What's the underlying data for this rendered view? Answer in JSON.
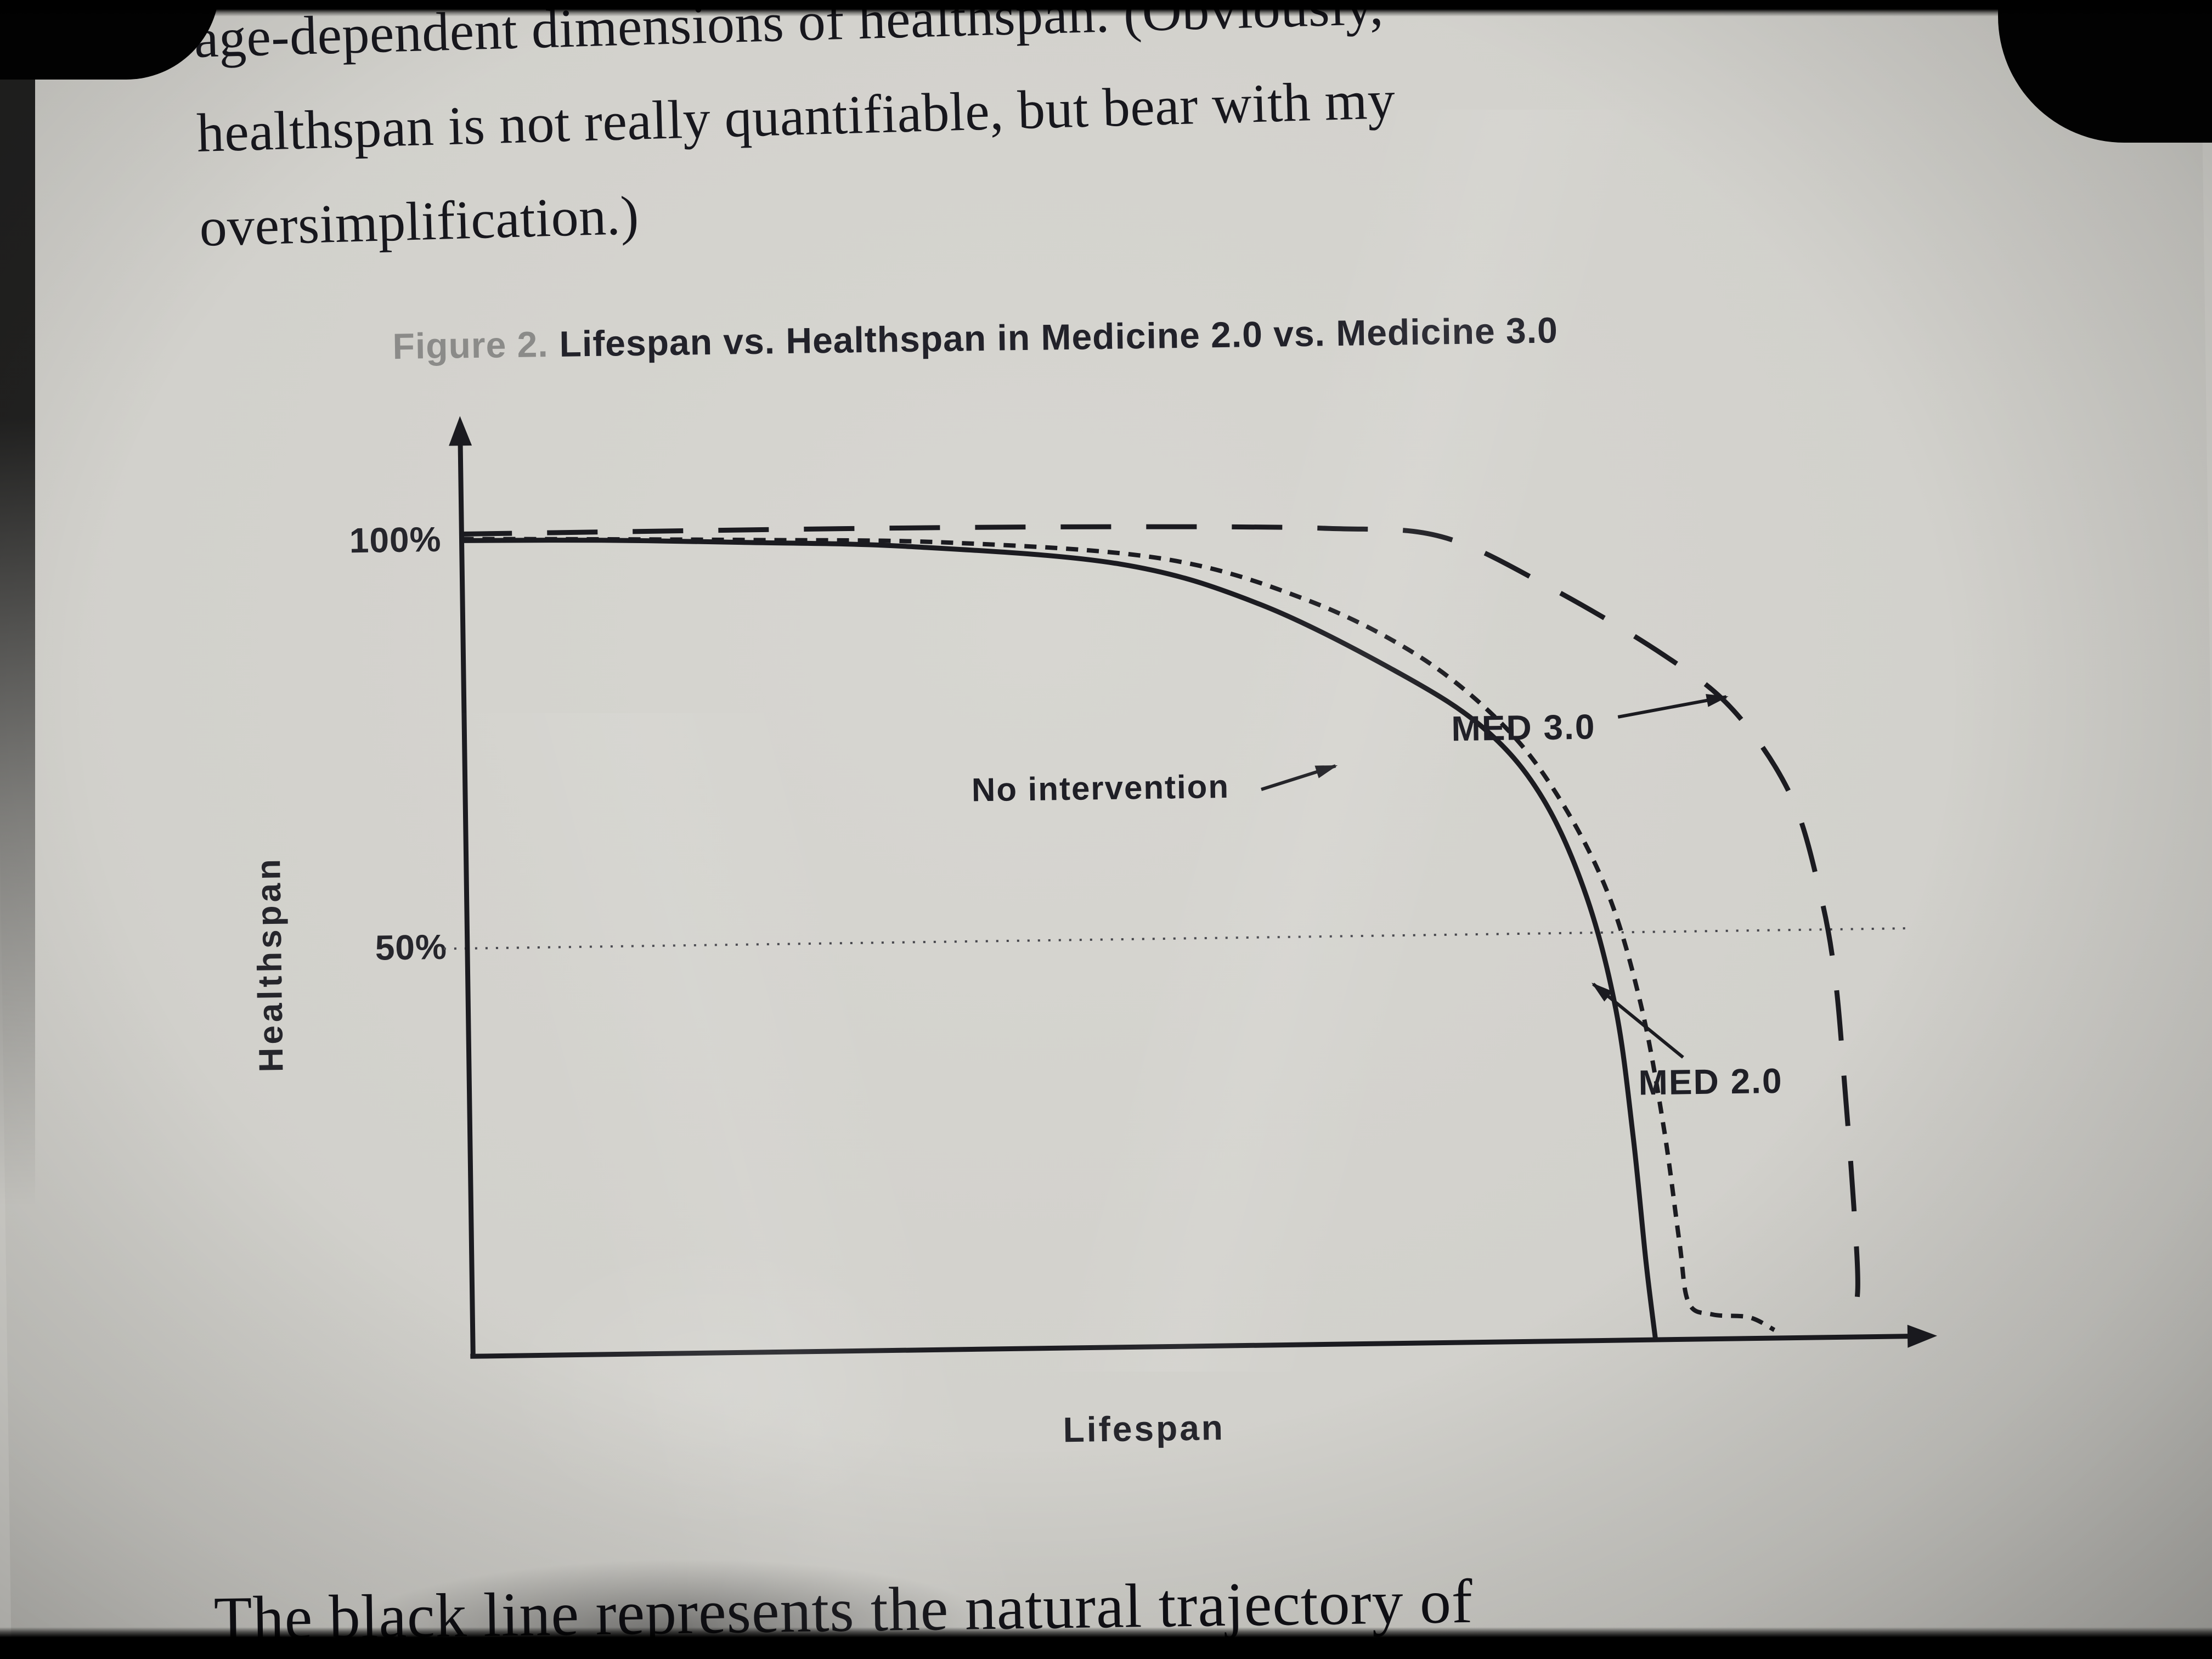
{
  "page": {
    "body_text": {
      "line1": "age-dependent dimensions of healthspan. (Obviously,",
      "line2": "healthspan is not really quantifiable, but bear with my",
      "line3": "oversimplification.)"
    },
    "figure_caption": {
      "prefix": "Figure 2.",
      "title": "Lifespan vs. Healthspan in Medicine 2.0 vs. Medicine 3.0"
    },
    "bottom_text": "The black line represents the natural trajectory of"
  },
  "chart_data": {
    "type": "line",
    "title": "Figure 2. Lifespan vs. Healthspan in Medicine 2.0 vs. Medicine 3.0",
    "xlabel": "Lifespan",
    "ylabel": "Healthspan",
    "x_axis_numeric_labels": false,
    "xlim_normalized": [
      0,
      1
    ],
    "ylim": [
      0,
      100
    ],
    "yticks": [
      {
        "value": 100,
        "label": "100%"
      },
      {
        "value": 50,
        "label": "50%"
      }
    ],
    "grid": {
      "horizontal_dotted_at": 50
    },
    "legend_position": "in-plot annotations with arrows",
    "series": [
      {
        "name": "No intervention",
        "line_style": "solid",
        "points": [
          [
            0,
            100
          ],
          [
            0.1,
            99.8
          ],
          [
            0.2,
            99.3
          ],
          [
            0.32,
            98.5
          ],
          [
            0.47,
            96.0
          ],
          [
            0.57,
            90.8
          ],
          [
            0.67,
            82.0
          ],
          [
            0.73,
            75.0
          ],
          [
            0.77,
            66.5
          ],
          [
            0.8,
            54.5
          ],
          [
            0.82,
            40.5
          ],
          [
            0.831,
            25.0
          ],
          [
            0.839,
            9.5
          ],
          [
            0.845,
            0.0
          ]
        ]
      },
      {
        "name": "MED 2.0",
        "line_style": "short-dash",
        "points": [
          [
            0,
            100.2
          ],
          [
            0.2,
            99.6
          ],
          [
            0.35,
            98.9
          ],
          [
            0.5,
            96.6
          ],
          [
            0.6,
            91.5
          ],
          [
            0.68,
            84.5
          ],
          [
            0.74,
            76.0
          ],
          [
            0.78,
            67.0
          ],
          [
            0.815,
            55.0
          ],
          [
            0.838,
            41.0
          ],
          [
            0.853,
            26.0
          ],
          [
            0.863,
            12.0
          ],
          [
            0.869,
            4.5
          ],
          [
            0.886,
            3.0
          ],
          [
            0.912,
            2.6
          ],
          [
            0.93,
            1.0
          ]
        ]
      },
      {
        "name": "MED 3.0",
        "line_style": "long-dash",
        "points": [
          [
            0,
            100.8
          ],
          [
            0.3,
            100.8
          ],
          [
            0.5,
            100.5
          ],
          [
            0.62,
            100.0
          ],
          [
            0.7,
            98.8
          ],
          [
            0.776,
            92.5
          ],
          [
            0.857,
            84.0
          ],
          [
            0.907,
            77.0
          ],
          [
            0.947,
            66.5
          ],
          [
            0.967,
            54.5
          ],
          [
            0.977,
            44.0
          ],
          [
            0.983,
            30.0
          ],
          [
            0.988,
            16.0
          ],
          [
            0.99,
            6.0
          ],
          [
            0.985,
            1.0
          ]
        ]
      }
    ],
    "annotations": [
      {
        "text": "No intervention",
        "points_to_series": "No intervention"
      },
      {
        "text": "MED 3.0",
        "points_to_series": "MED 3.0"
      },
      {
        "text": "MED 2.0",
        "points_to_series": "MED 2.0"
      }
    ]
  },
  "colors": {
    "page_background": "#d3d2cd",
    "ink": "#1b1b20",
    "caption_prefix_gray": "#8b8b89",
    "bezel_black": "#020202"
  }
}
